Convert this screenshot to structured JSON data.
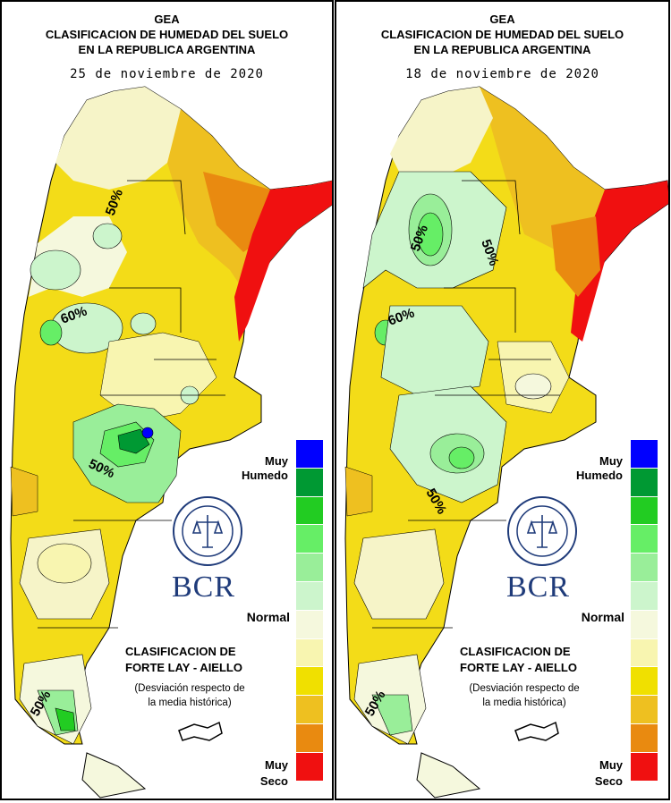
{
  "panels": [
    {
      "title1": "GEA",
      "title2": "CLASIFICACION DE HUMEDAD DEL SUELO",
      "title3": "EN LA REPUBLICA ARGENTINA",
      "date": "25 de noviembre de 2020",
      "contour_labels": [
        "50%",
        "60%",
        "50%",
        "50%"
      ],
      "brand": "BCR"
    },
    {
      "title1": "GEA",
      "title2": "CLASIFICACION DE HUMEDAD DEL SUELO",
      "title3": "EN LA REPUBLICA ARGENTINA",
      "date": "18 de noviembre de 2020",
      "contour_labels": [
        "50%",
        "50%",
        "60%",
        "50%",
        "50%"
      ],
      "brand": "BCR"
    }
  ],
  "legend": {
    "top_label_1": "Muy",
    "top_label_2": "Humedo",
    "mid_label": "Normal",
    "bottom_label_1": "Muy",
    "bottom_label_2": "Seco",
    "colors": [
      "#0000ff",
      "#009933",
      "#22cc22",
      "#66ee66",
      "#99ee99",
      "#ccf5cc",
      "#f5f8dd",
      "#f8f5b0",
      "#f0e000",
      "#eec020",
      "#e98a10",
      "#f01010"
    ]
  },
  "classification": {
    "line1": "CLASIFICACION DE",
    "line2": "FORTE LAY - AIELLO",
    "note1": "(Desviación respecto de",
    "note2": "la media histórica)"
  }
}
